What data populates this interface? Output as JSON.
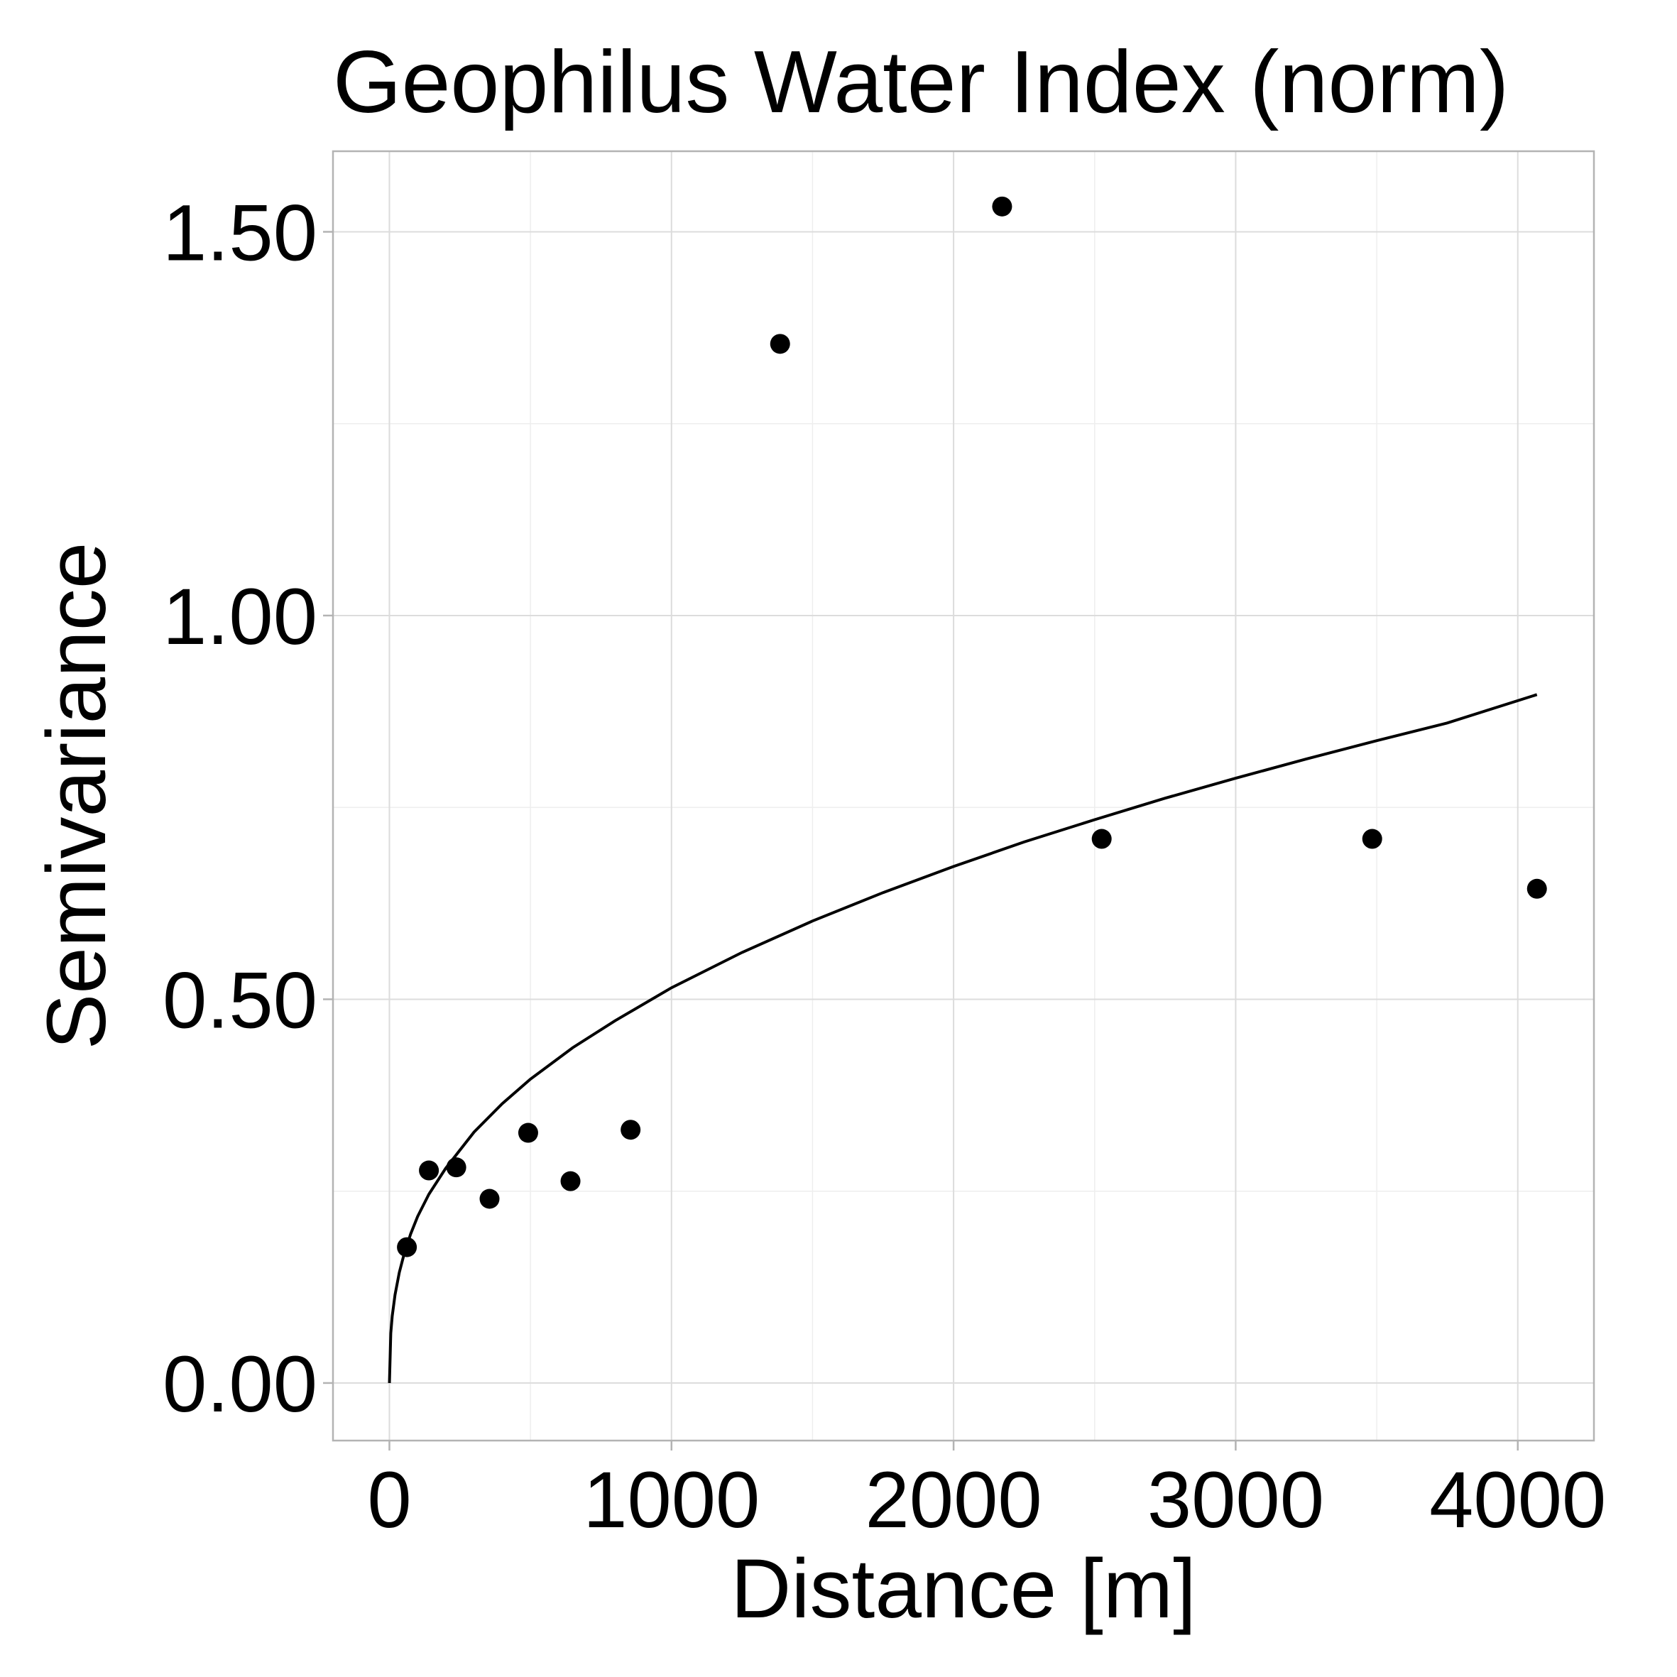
{
  "chart_data": {
    "type": "scatter",
    "title": "Geophilus Water Index (norm)",
    "xlabel": "Distance [m]",
    "ylabel": "Semivariance",
    "xlim": [
      -200,
      4270
    ],
    "ylim": [
      -0.075,
      1.605
    ],
    "x_ticks": [
      0,
      1000,
      2000,
      3000,
      4000
    ],
    "x_tick_labels": [
      "0",
      "1000",
      "2000",
      "3000",
      "4000"
    ],
    "y_ticks": [
      0.0,
      0.5,
      1.0,
      1.5
    ],
    "y_tick_labels": [
      "0.00",
      "0.50",
      "1.00",
      "1.50"
    ],
    "grid": true,
    "legend": "none",
    "series": [
      {
        "type": "scatter",
        "x": [
          62,
          140,
          237,
          355,
          492,
          642,
          855,
          1385,
          2172,
          2525,
          3484,
          4068
        ],
        "y": [
          0.177,
          0.277,
          0.281,
          0.24,
          0.326,
          0.263,
          0.33,
          1.354,
          1.533,
          0.709,
          0.709,
          0.644
        ]
      },
      {
        "type": "line",
        "x": [
          0,
          5,
          10,
          20,
          35,
          50,
          75,
          100,
          140,
          200,
          300,
          400,
          500,
          650,
          800,
          1000,
          1250,
          1500,
          1750,
          2000,
          2250,
          2500,
          2750,
          3000,
          3250,
          3500,
          3750,
          4068
        ],
        "y": [
          0.0,
          0.065,
          0.087,
          0.115,
          0.144,
          0.165,
          0.194,
          0.217,
          0.246,
          0.28,
          0.327,
          0.364,
          0.396,
          0.437,
          0.472,
          0.515,
          0.561,
          0.602,
          0.639,
          0.673,
          0.705,
          0.734,
          0.762,
          0.788,
          0.813,
          0.837,
          0.86,
          0.897
        ]
      }
    ]
  }
}
